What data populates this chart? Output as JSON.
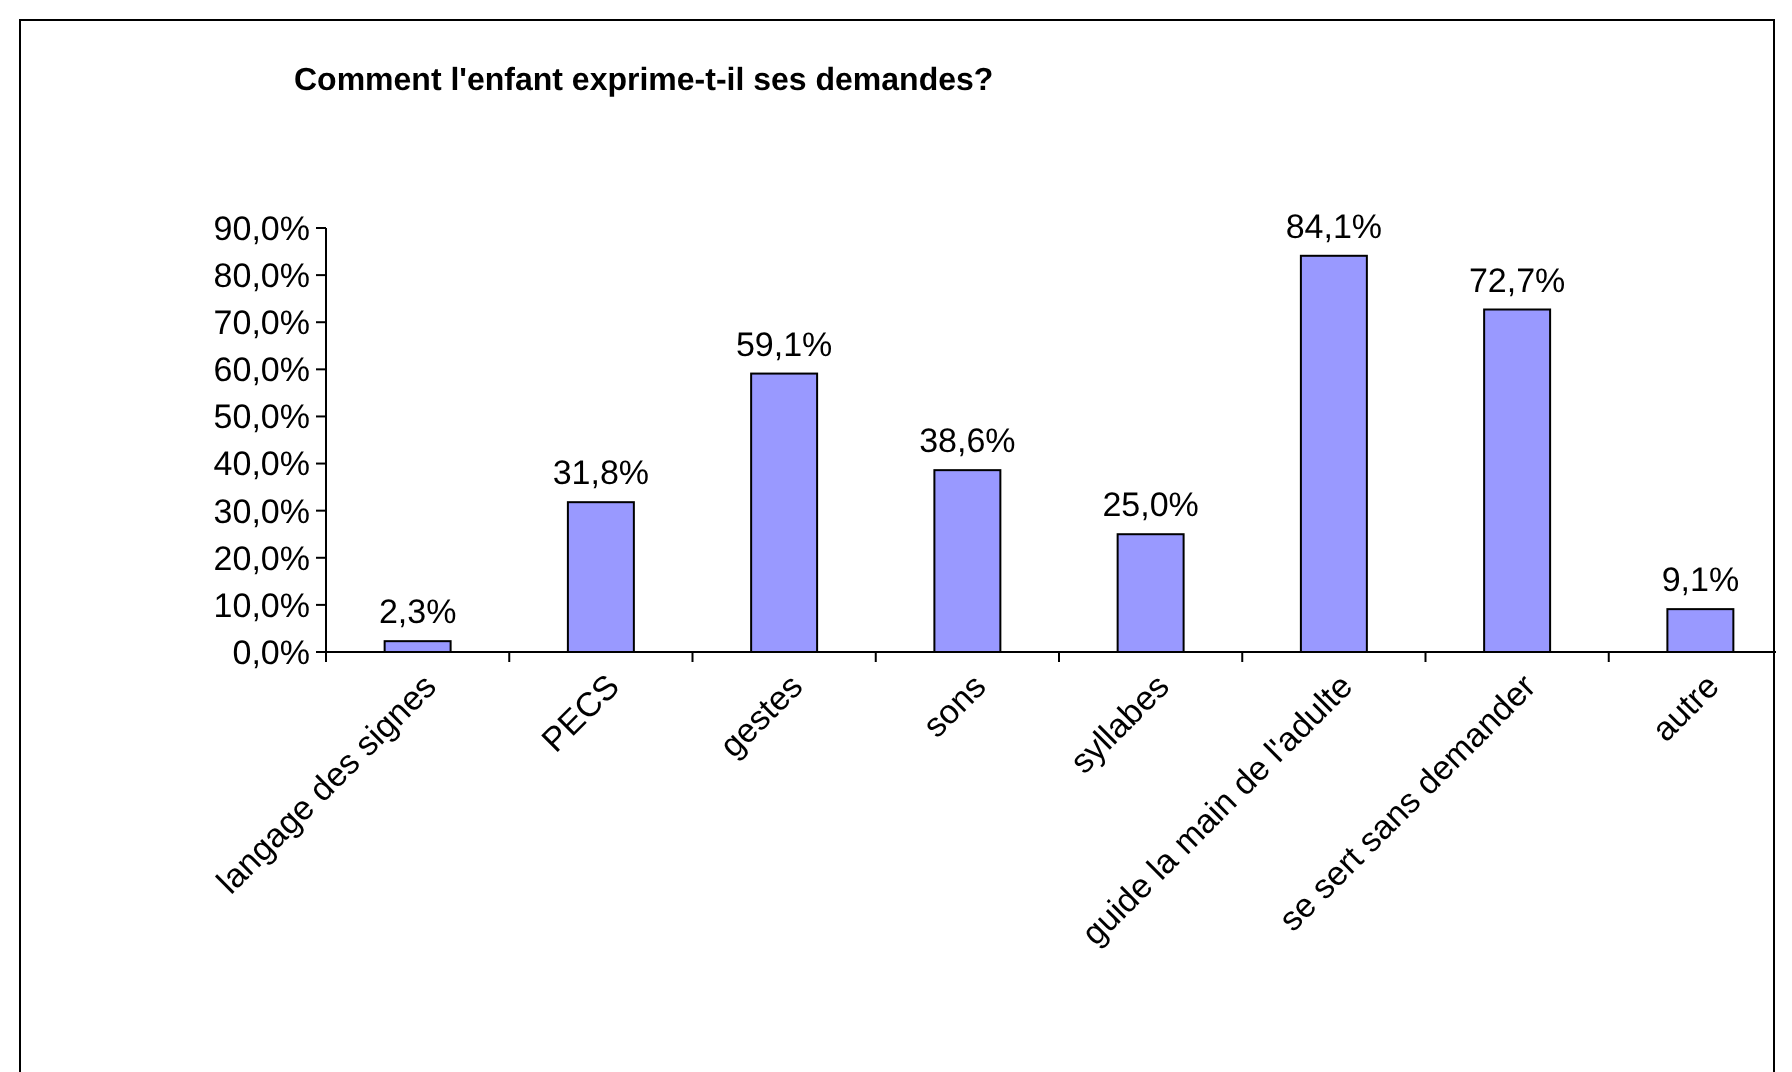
{
  "chart_data": {
    "type": "bar",
    "title": "Comment l'enfant exprime-t-il ses demandes?",
    "categories": [
      "langage des signes",
      "PECS",
      "gestes",
      "sons",
      "syllabes",
      "guide la main de l'adulte",
      "se sert sans demander",
      "autre"
    ],
    "values": [
      2.3,
      31.8,
      59.1,
      38.6,
      25.0,
      84.1,
      72.7,
      9.1
    ],
    "value_labels": [
      "2,3%",
      "31,8%",
      "59,1%",
      "38,6%",
      "25,0%",
      "84,1%",
      "72,7%",
      "9,1%"
    ],
    "color": "#9999ff",
    "ylim": [
      0,
      90
    ],
    "yticks": [
      {
        "value": 0,
        "label": "0,0%"
      },
      {
        "value": 10,
        "label": "10,0%"
      },
      {
        "value": 20,
        "label": "20,0%"
      },
      {
        "value": 30,
        "label": "30,0%"
      },
      {
        "value": 40,
        "label": "40,0%"
      },
      {
        "value": 50,
        "label": "50,0%"
      },
      {
        "value": 60,
        "label": "60,0%"
      },
      {
        "value": 70,
        "label": "70,0%"
      },
      {
        "value": 80,
        "label": "80,0%"
      },
      {
        "value": 90,
        "label": "90,0%"
      }
    ],
    "grid": false
  }
}
